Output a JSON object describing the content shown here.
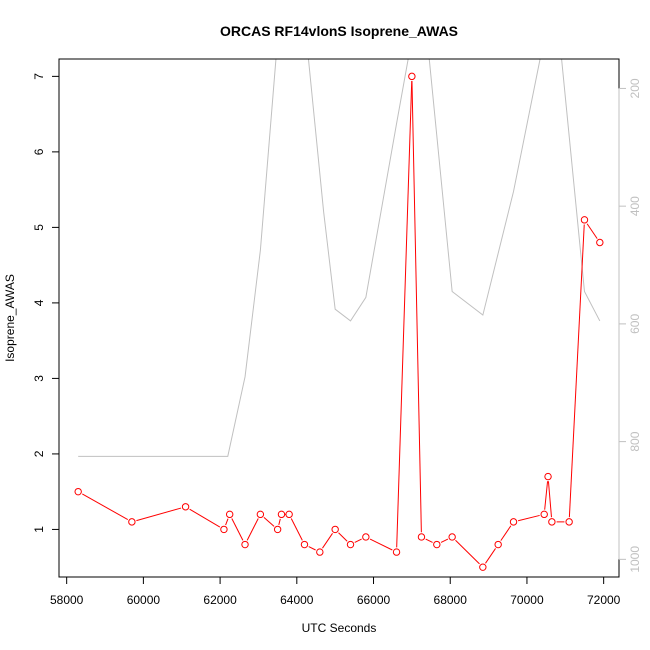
{
  "chart_data": {
    "type": "line",
    "title": "ORCAS RF14vlonS Isoprene_AWAS",
    "xlabel": "UTC Seconds",
    "ylabel": "Isoprene_AWAS",
    "xlim": [
      57800,
      72400
    ],
    "ylim": [
      0.37,
      7.23
    ],
    "x_ticks": [
      "58000",
      "60000",
      "62000",
      "64000",
      "66000",
      "68000",
      "70000",
      "72000"
    ],
    "y_ticks": [
      "1",
      "2",
      "3",
      "4",
      "5",
      "6",
      "7"
    ],
    "secondary_y": {
      "lim": [
        1030,
        150
      ],
      "reversed": true,
      "ticks": [
        "200",
        "400",
        "600",
        "800",
        "1000"
      ],
      "color": "#c0c0c0"
    },
    "grid": false,
    "legend": "none",
    "series": [
      {
        "color": "#ff0000",
        "marker": "open-circle",
        "axis": "left",
        "x": [
          58300,
          59700,
          61100,
          62100,
          62250,
          62650,
          63050,
          63500,
          63600,
          63800,
          64200,
          64600,
          65000,
          65400,
          65800,
          66600,
          67000,
          67250,
          67650,
          68050,
          68850,
          69250,
          69650,
          70450,
          70550,
          70650,
          71100,
          71500,
          71900
        ],
        "y": [
          1.5,
          1.1,
          1.3,
          1.0,
          1.2,
          0.8,
          1.2,
          1.0,
          1.2,
          1.2,
          0.8,
          0.7,
          1.0,
          0.8,
          0.9,
          0.7,
          7.0,
          0.9,
          0.8,
          0.9,
          0.5,
          0.8,
          1.1,
          1.2,
          1.7,
          1.1,
          1.1,
          5.1,
          4.8
        ]
      },
      {
        "color": "#c0c0c0",
        "marker": "none",
        "axis": "right",
        "x": [
          58300,
          62200,
          62650,
          63050,
          63500,
          64250,
          64700,
          65000,
          65400,
          65800,
          66600,
          67000,
          67400,
          68050,
          68850,
          69650,
          70450,
          70850,
          71500,
          71900
        ],
        "y": [
          825,
          825,
          690,
          475,
          115,
          115,
          410,
          575,
          595,
          555,
          260,
          115,
          115,
          545,
          585,
          375,
          115,
          115,
          545,
          595
        ]
      }
    ]
  }
}
